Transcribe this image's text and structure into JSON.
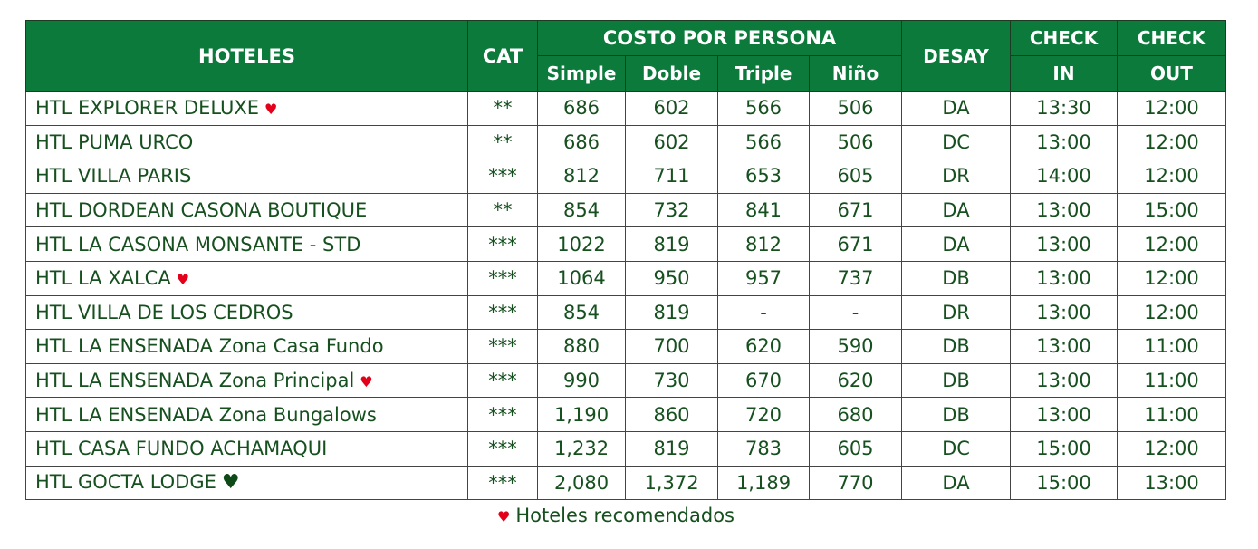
{
  "table": {
    "header": {
      "hoteles": "HOTELES",
      "cat": "CAT",
      "costo": "COSTO POR PERSONA",
      "sub": [
        "Simple",
        "Doble",
        "Triple",
        "Niño"
      ],
      "desay": "DESAY",
      "check_in": [
        "CHECK",
        "IN"
      ],
      "check_out": [
        "CHECK",
        "OUT"
      ]
    },
    "rows": [
      [
        {
          "name": "HTL EXPLORER DELUXE",
          "icon": "♥",
          "icon_color": "#e3001b"
        },
        "**",
        "686",
        "602",
        "566",
        "506",
        "DA",
        "13:30",
        "12:00"
      ],
      [
        {
          "name": "HTL PUMA URCO"
        },
        "**",
        "686",
        "602",
        "566",
        "506",
        "DC",
        "13:00",
        "12:00"
      ],
      [
        {
          "name": "HTL VILLA PARIS"
        },
        "***",
        "812",
        "711",
        "653",
        "605",
        "DR",
        "14:00",
        "12:00"
      ],
      [
        {
          "name": "HTL DORDEAN CASONA BOUTIQUE"
        },
        "**",
        "854",
        "732",
        "841",
        "671",
        "DA",
        "13:00",
        "15:00"
      ],
      [
        {
          "name": "HTL LA CASONA MONSANTE - STD"
        },
        "***",
        "1022",
        "819",
        "812",
        "671",
        "DA",
        "13:00",
        "12:00"
      ],
      [
        {
          "name": "HTL LA XALCA",
          "icon": "♥",
          "icon_color": "#e3001b"
        },
        "***",
        "1064",
        "950",
        "957",
        "737",
        "DB",
        "13:00",
        "12:00"
      ],
      [
        {
          "name": "HTL VILLA DE LOS CEDROS"
        },
        "***",
        "854",
        "819",
        "-",
        "-",
        "DR",
        "13:00",
        "12:00"
      ],
      [
        {
          "name": "HTL LA ENSENADA Zona Casa Fundo"
        },
        "***",
        "880",
        "700",
        "620",
        "590",
        "DB",
        "13:00",
        "11:00"
      ],
      [
        {
          "name": "HTL LA ENSENADA Zona Principal",
          "icon": "♥",
          "icon_color": "#e3001b"
        },
        "***",
        "990",
        "730",
        "670",
        "620",
        "DB",
        "13:00",
        "11:00"
      ],
      [
        {
          "name": "HTL LA ENSENADA Zona Bungalows"
        },
        "***",
        "1,190",
        "860",
        "720",
        "680",
        "DB",
        "13:00",
        "11:00"
      ],
      [
        {
          "name": "HTL CASA FUNDO ACHAMAQUI"
        },
        "***",
        "1,232",
        "819",
        "783",
        "605",
        "DC",
        "15:00",
        "12:00"
      ],
      [
        {
          "name": "HTL GOCTA LODGE",
          "icon": "♥",
          "icon_color": "#0d4a17"
        },
        "***",
        "2,080",
        "1,372",
        "1,189",
        "770",
        "DA",
        "15:00",
        "13:00"
      ]
    ]
  },
  "legend": {
    "icon": "♥",
    "icon_color": "#e3001b",
    "text": "Hoteles recomendados"
  }
}
